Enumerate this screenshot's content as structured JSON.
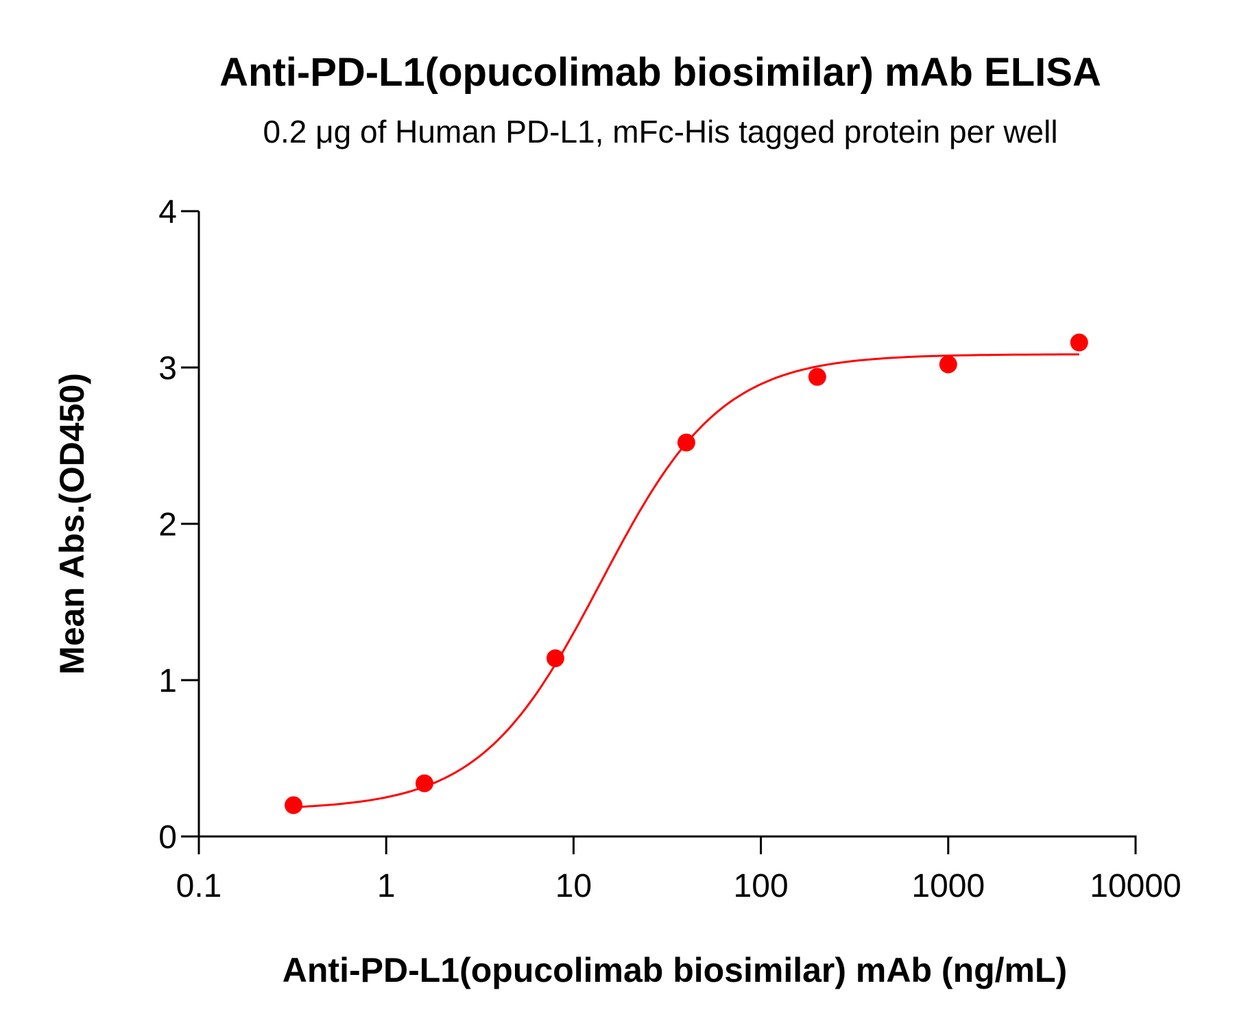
{
  "chart_data": {
    "type": "scatter",
    "title": "Anti-PD-L1(opucolimab biosimilar) mAb ELISA",
    "subtitle": "0.2 μg of Human PD-L1, mFc-His tagged protein per well",
    "xlabel": "Anti-PD-L1(opucolimab biosimilar) mAb (ng/mL)",
    "ylabel": "Mean Abs.(OD450)",
    "xscale": "log",
    "xlim": [
      0.1,
      10000
    ],
    "ylim": [
      0,
      4
    ],
    "xticks": [
      "0.1",
      "1",
      "10",
      "100",
      "1000",
      "10000"
    ],
    "yticks": [
      "0",
      "1",
      "2",
      "3",
      "4"
    ],
    "grid": false,
    "color": "#ff0000",
    "series": [
      {
        "x": [
          0.32,
          1.6,
          8,
          40,
          200,
          1000,
          5000
        ],
        "y": [
          0.2,
          0.34,
          1.14,
          2.52,
          2.94,
          3.02,
          3.16
        ],
        "fit": "4PL sigmoidal curve"
      }
    ]
  }
}
